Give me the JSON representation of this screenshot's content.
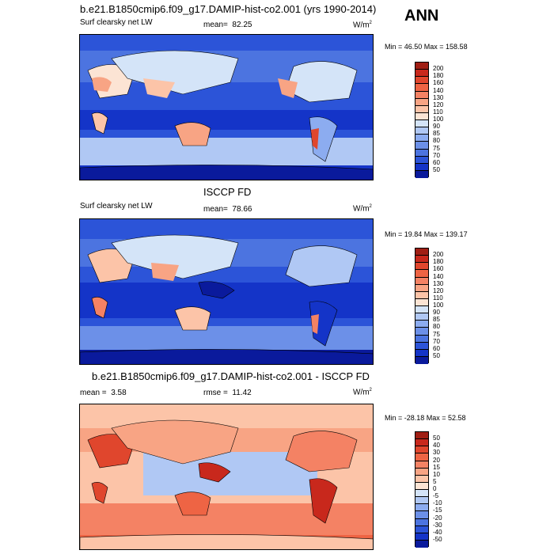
{
  "season": "ANN",
  "chart_data": [
    {
      "type": "heatmap",
      "title": "b.e21.B1850cmip6.f09_g17.DAMIP-hist-co2.001 (yrs 1990-2014)",
      "variable": "Surf clearsky net LW",
      "stat_label": "mean=",
      "stat_value": "82.25",
      "units": "W/m",
      "units_sup": "2",
      "minmax": "Min =  46.50 Max = 158.58",
      "min": 46.5,
      "max": 158.58,
      "levels": [
        "200",
        "180",
        "160",
        "140",
        "130",
        "120",
        "110",
        "100",
        "90",
        "85",
        "80",
        "75",
        "70",
        "60",
        "50"
      ],
      "colors": [
        "#a01e14",
        "#c8281c",
        "#e0462d",
        "#ee6444",
        "#f48264",
        "#f8a484",
        "#fcc4a8",
        "#fce4d4",
        "#d4e4f8",
        "#b0c8f4",
        "#8cacf0",
        "#6c90e8",
        "#4c74e0",
        "#2c54d8",
        "#1434c8",
        "#0a1a9c"
      ]
    },
    {
      "type": "heatmap",
      "title": "ISCCP FD",
      "variable": "Surf clearsky net LW",
      "stat_label": "mean=",
      "stat_value": "78.66",
      "units": "W/m",
      "units_sup": "2",
      "minmax": "Min =  19.84 Max = 139.17",
      "min": 19.84,
      "max": 139.17,
      "levels": [
        "200",
        "180",
        "160",
        "140",
        "130",
        "120",
        "110",
        "100",
        "90",
        "85",
        "80",
        "75",
        "70",
        "60",
        "50"
      ],
      "colors": [
        "#a01e14",
        "#c8281c",
        "#e0462d",
        "#ee6444",
        "#f48264",
        "#f8a484",
        "#fcc4a8",
        "#fce4d4",
        "#d4e4f8",
        "#b0c8f4",
        "#8cacf0",
        "#6c90e8",
        "#4c74e0",
        "#2c54d8",
        "#1434c8",
        "#0a1a9c"
      ]
    },
    {
      "type": "heatmap",
      "title": "b.e21.B1850cmip6.f09_g17.DAMIP-hist-co2.001 - ISCCP FD",
      "stat_label": "mean =",
      "stat_value": "3.58",
      "rmse_label": "rmse =",
      "rmse_value": "11.42",
      "units": "W/m",
      "units_sup": "2",
      "minmax": "Min = -28.18 Max =  52.58",
      "min": -28.18,
      "max": 52.58,
      "levels": [
        "50",
        "40",
        "30",
        "20",
        "15",
        "10",
        "5",
        "0",
        "-5",
        "-10",
        "-15",
        "-20",
        "-30",
        "-40",
        "-50"
      ],
      "colors": [
        "#a01e14",
        "#c8281c",
        "#e0462d",
        "#ee6444",
        "#f48264",
        "#f8a484",
        "#fcc4a8",
        "#fce4d4",
        "#d4e4f8",
        "#b0c8f4",
        "#8cacf0",
        "#6c90e8",
        "#4c74e0",
        "#2c54d8",
        "#1434c8",
        "#0a1a9c"
      ]
    }
  ]
}
